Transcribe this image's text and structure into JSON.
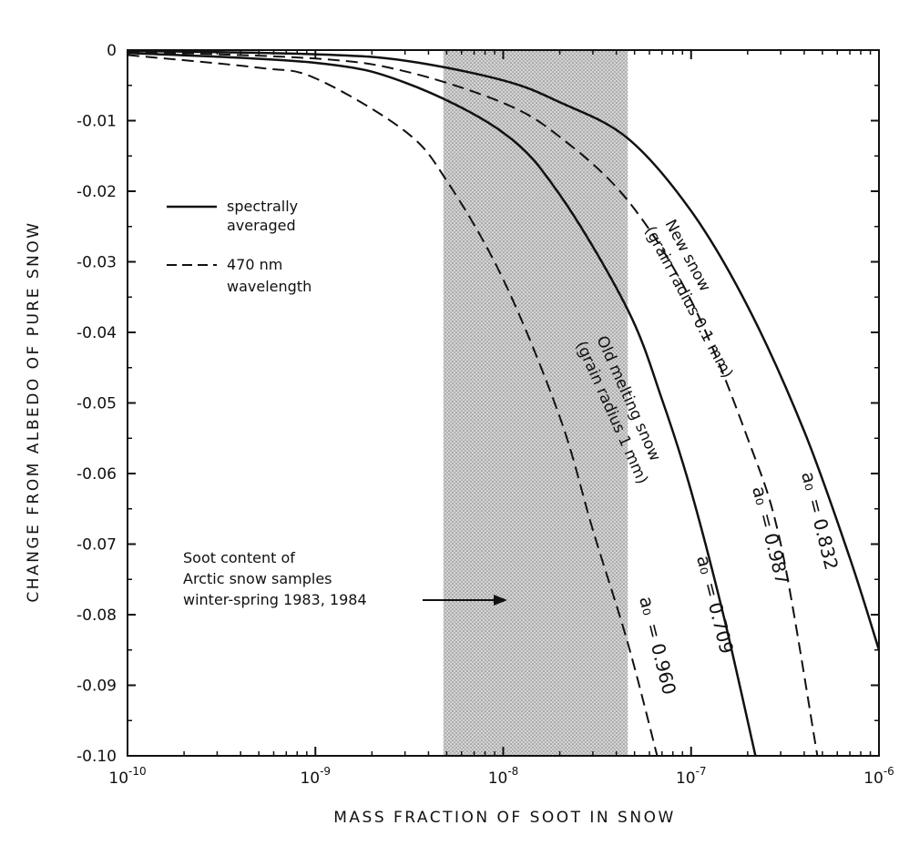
{
  "chart_data": {
    "type": "line",
    "title": "",
    "xlabel": "MASS FRACTION OF SOOT IN SNOW",
    "ylabel": "CHANGE FROM ALBEDO OF PURE SNOW",
    "x_scale": "log",
    "xlim": [
      1e-10,
      1e-06
    ],
    "ylim": [
      -0.1,
      0
    ],
    "x_ticks": [
      {
        "value": 1e-10,
        "base": "10",
        "exp": "-10"
      },
      {
        "value": 1e-09,
        "base": "10",
        "exp": "-9"
      },
      {
        "value": 1e-08,
        "base": "10",
        "exp": "-8"
      },
      {
        "value": 1e-07,
        "base": "10",
        "exp": "-7"
      },
      {
        "value": 1e-06,
        "base": "10",
        "exp": "-6"
      }
    ],
    "y_ticks": [
      {
        "value": 0,
        "label": "0"
      },
      {
        "value": -0.01,
        "label": "-0.01"
      },
      {
        "value": -0.02,
        "label": "-0.02"
      },
      {
        "value": -0.03,
        "label": "-0.03"
      },
      {
        "value": -0.04,
        "label": "-0.04"
      },
      {
        "value": -0.05,
        "label": "-0.05"
      },
      {
        "value": -0.06,
        "label": "-0.06"
      },
      {
        "value": -0.07,
        "label": "-0.07"
      },
      {
        "value": -0.08,
        "label": "-0.08"
      },
      {
        "value": -0.09,
        "label": "-0.09"
      },
      {
        "value": -0.1,
        "label": "-0.10"
      }
    ],
    "grid": false,
    "shaded_region": {
      "x": [
        4.8e-09,
        4.6e-08
      ]
    },
    "legend": [
      {
        "style": "solid",
        "label_lines": [
          "spectrally",
          "averaged"
        ]
      },
      {
        "style": "dashed",
        "label_lines": [
          "470 nm",
          "wavelength"
        ]
      }
    ],
    "series": [
      {
        "style": "solid",
        "a0": "= 0.832",
        "x": [
          1e-10,
          1e-09,
          3e-09,
          1e-08,
          2e-08,
          4.6e-08,
          1e-07,
          2e-07,
          4e-07,
          7e-07,
          1e-06
        ],
        "y": [
          -0.0001,
          -0.0006,
          -0.0015,
          -0.0043,
          -0.0074,
          -0.0125,
          -0.0228,
          -0.0363,
          -0.054,
          -0.072,
          -0.085
        ]
      },
      {
        "style": "dashed",
        "a0": "= 0.987",
        "x": [
          1e-10,
          1e-09,
          3e-09,
          1e-08,
          2e-08,
          4.6e-08,
          1e-07,
          2e-07,
          3e-07,
          4.7e-07
        ],
        "y": [
          -0.0002,
          -0.0012,
          -0.003,
          -0.0075,
          -0.0123,
          -0.0213,
          -0.0355,
          -0.055,
          -0.07,
          -0.1
        ]
      },
      {
        "style": "solid",
        "a0": "= 0.709",
        "x": [
          1e-10,
          1e-09,
          3e-09,
          1e-08,
          2e-08,
          4.6e-08,
          7e-08,
          1e-07,
          1.5e-07,
          2.2e-07
        ],
        "y": [
          -0.0004,
          -0.0018,
          -0.0046,
          -0.0117,
          -0.0205,
          -0.0368,
          -0.0495,
          -0.0625,
          -0.0805,
          -0.1
        ]
      },
      {
        "style": "dashed",
        "a0": "= 0.960",
        "x": [
          1e-10,
          5e-10,
          1e-09,
          3e-09,
          5e-09,
          1e-08,
          2e-08,
          3e-08,
          4.6e-08,
          6.6e-08
        ],
        "y": [
          -0.0007,
          -0.0025,
          -0.004,
          -0.0115,
          -0.0185,
          -0.0325,
          -0.052,
          -0.068,
          -0.084,
          -0.1
        ]
      }
    ],
    "annotations": {
      "arrow_text": [
        "Soot content of",
        "Arctic snow samples",
        "winter-spring 1983, 1984"
      ],
      "new_snow": [
        "New snow",
        "(grain radius 0.1 mm)"
      ],
      "old_snow": [
        "Old melting snow",
        "(grain radius 1 mm)"
      ],
      "a0_symbol": "a₀"
    }
  }
}
